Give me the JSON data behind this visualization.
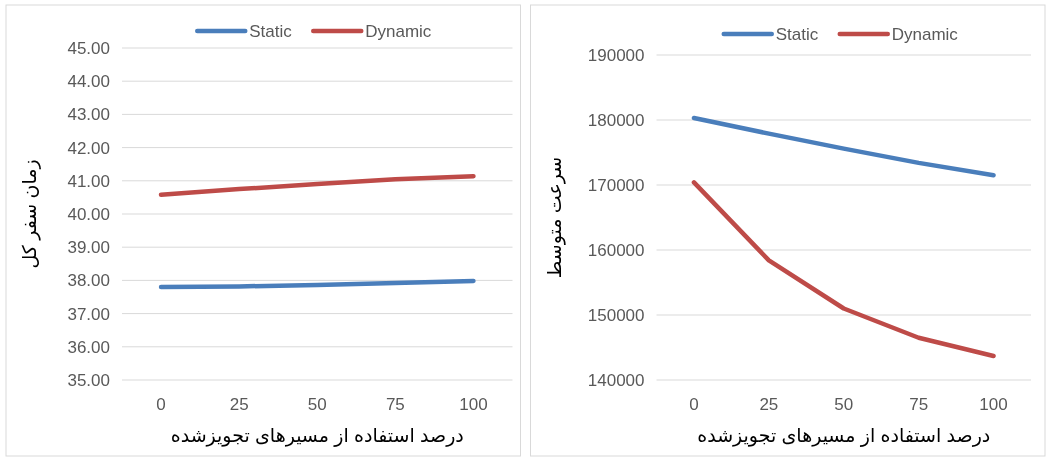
{
  "chart_data": [
    {
      "type": "line",
      "xlabel": "درصد استفاده از مسیرهای تجویزشده",
      "ylabel": "زمان سفر کل",
      "categories": [
        "0",
        "25",
        "50",
        "75",
        "100"
      ],
      "series": [
        {
          "name": "Static",
          "color": "#4a7ebb",
          "values": [
            37.8,
            37.82,
            37.86,
            37.92,
            37.98
          ]
        },
        {
          "name": "Dynamic",
          "color": "#be4b48",
          "values": [
            40.58,
            40.75,
            40.9,
            41.05,
            41.14
          ]
        }
      ],
      "ylim": [
        35,
        45
      ],
      "yticks": [
        {
          "value": 35,
          "label": "35.00"
        },
        {
          "value": 36,
          "label": "36.00"
        },
        {
          "value": 37,
          "label": "37.00"
        },
        {
          "value": 38,
          "label": "38.00"
        },
        {
          "value": 39,
          "label": "39.00"
        },
        {
          "value": 40,
          "label": "40.00"
        },
        {
          "value": 41,
          "label": "41.00"
        },
        {
          "value": 42,
          "label": "42.00"
        },
        {
          "value": 43,
          "label": "43.00"
        },
        {
          "value": 44,
          "label": "44.00"
        },
        {
          "value": 45,
          "label": "45.00"
        }
      ],
      "grid": "y",
      "legend": "top",
      "marker": "none",
      "line_style": "solid"
    },
    {
      "type": "line",
      "xlabel": "درصد استفاده از مسیرهای تجویزشده",
      "ylabel": "سرعت متوسط",
      "categories": [
        "0",
        "25",
        "50",
        "75",
        "100"
      ],
      "series": [
        {
          "name": "Static",
          "color": "#4a7ebb",
          "values": [
            180300,
            177900,
            175600,
            173400,
            171500
          ]
        },
        {
          "name": "Dynamic",
          "color": "#be4b48",
          "values": [
            170400,
            158400,
            151000,
            146500,
            143700
          ]
        }
      ],
      "ylim": [
        140000,
        190000
      ],
      "yticks": [
        140000,
        150000,
        160000,
        170000,
        180000,
        190000
      ],
      "grid": "y",
      "legend": "top",
      "marker": "none",
      "line_style": "solid"
    }
  ]
}
